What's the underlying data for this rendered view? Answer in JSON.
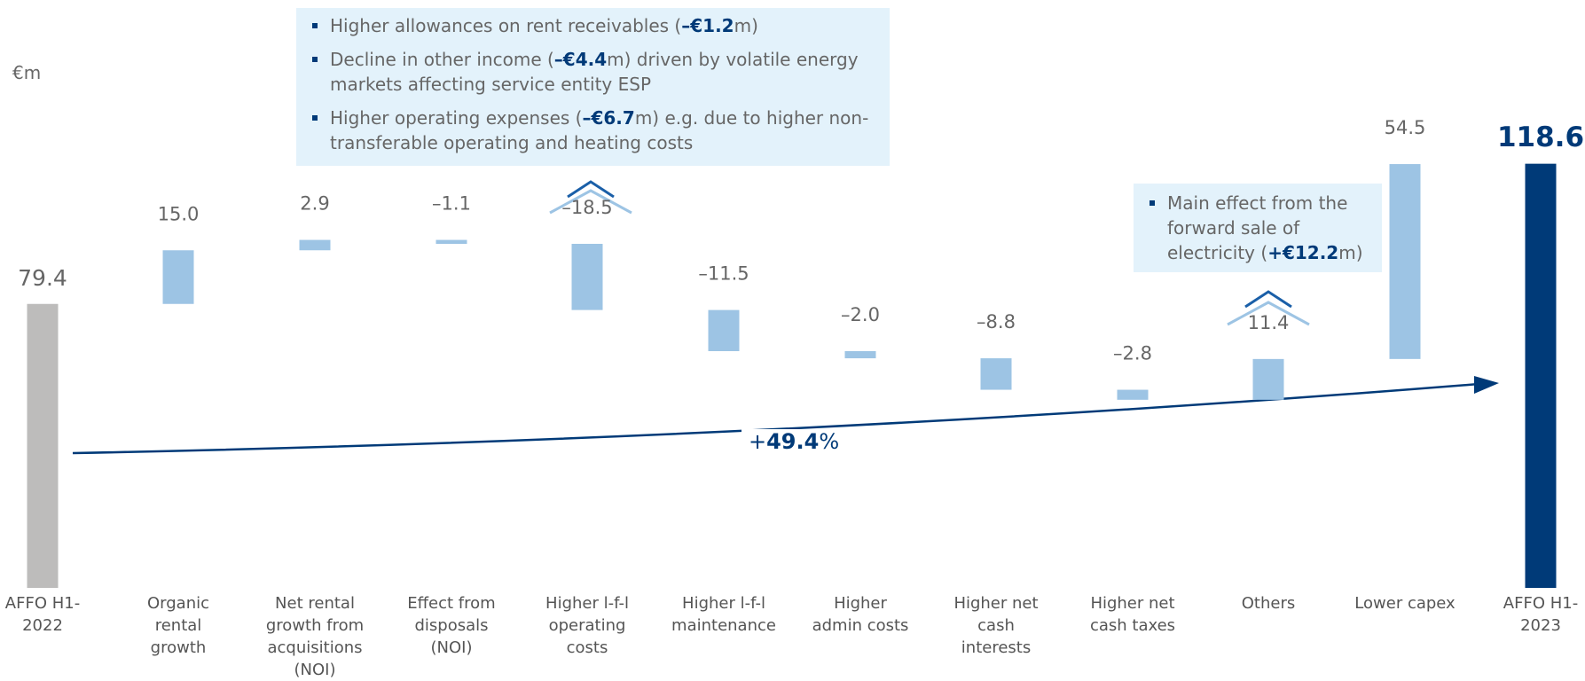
{
  "chart_data": {
    "type": "waterfall",
    "y_unit_label": "€m",
    "categories": [
      "AFFO H1-2022",
      "Organic rental growth",
      "Net rental growth from acquisitions (NOI)",
      "Effect from disposals (NOI)",
      "Higher l-f-l operating costs",
      "Higher l-f-l maintenance",
      "Higher admin costs",
      "Higher net cash interests",
      "Higher net cash taxes",
      "Others",
      "Lower capex",
      "AFFO H1-2023"
    ],
    "values": [
      79.4,
      15.0,
      2.9,
      -1.1,
      -18.5,
      -11.5,
      -2.0,
      -8.8,
      -2.8,
      11.4,
      54.5,
      118.6
    ],
    "value_labels": [
      "79.4",
      "15.0",
      "2.9",
      "–1.1",
      "–18.5",
      "–11.5",
      "–2.0",
      "–8.8",
      "–2.8",
      "11.4",
      "54.5",
      "118.6"
    ],
    "measure": [
      "absolute",
      "relative",
      "relative",
      "relative",
      "relative",
      "relative",
      "relative",
      "relative",
      "relative",
      "relative",
      "relative",
      "total"
    ],
    "colors": [
      "#bdbcbb",
      "#9dc4e4",
      "#9dc4e4",
      "#9dc4e4",
      "#9dc4e4",
      "#9dc4e4",
      "#9dc4e4",
      "#9dc4e4",
      "#9dc4e4",
      "#9dc4e4",
      "#9dc4e4",
      "#003a78"
    ],
    "ylim": [
      0,
      120
    ],
    "growth_label": [
      "+",
      "49.4",
      "%"
    ],
    "annotations": [
      {
        "bullets": [
          [
            "Higher allowances on rent receivables (",
            "–€1.2",
            "m)"
          ],
          [
            "Decline in other income (",
            "–€4.4",
            "m) driven by volatile energy markets affecting service entity ESP"
          ],
          [
            "Higher operating expenses (",
            "–€6.7",
            "m) e.g. due to higher non-transferable operating and heating costs"
          ]
        ]
      },
      {
        "bullets": [
          [
            "Main effect from the forward sale of electricity (",
            "+€12.2",
            "m)"
          ]
        ]
      }
    ]
  }
}
